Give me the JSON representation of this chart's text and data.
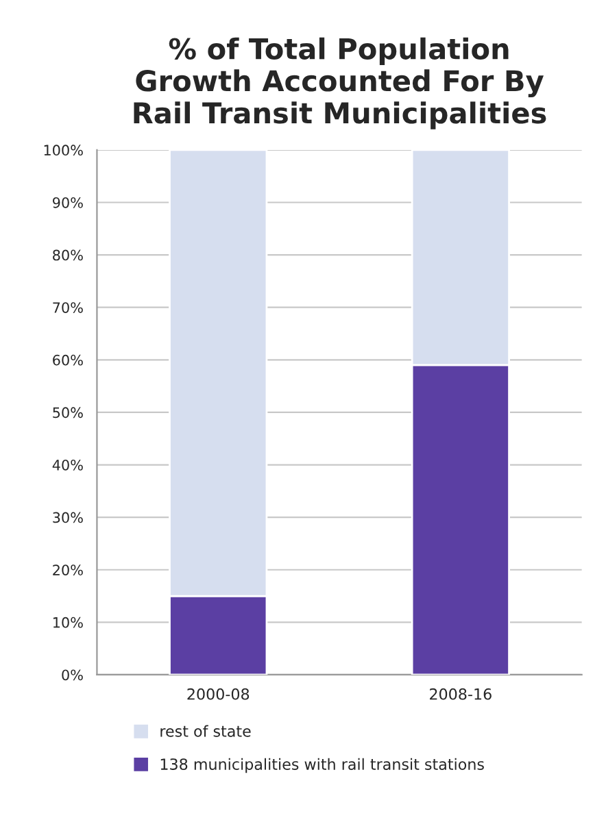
{
  "chart_data": {
    "type": "bar",
    "title": "% of Total Population\nGrowth Accounted For By\nRail Transit Municipalities",
    "categories": [
      "2000-08",
      "2008-16"
    ],
    "stacked": true,
    "series": [
      {
        "name": "138 municipalities with rail transit stations",
        "color": "#5b3fa3",
        "values": [
          15,
          59
        ]
      },
      {
        "name": "rest of state",
        "color": "#d6deef",
        "values": [
          85,
          41
        ]
      }
    ],
    "ylim": [
      0,
      100
    ],
    "yticks": [
      {
        "value": 0,
        "label": "0%"
      },
      {
        "value": 10,
        "label": "10%"
      },
      {
        "value": 20,
        "label": "20%"
      },
      {
        "value": 30,
        "label": "30%"
      },
      {
        "value": 40,
        "label": "40%"
      },
      {
        "value": 50,
        "label": "50%"
      },
      {
        "value": 60,
        "label": "60%"
      },
      {
        "value": 70,
        "label": "70%"
      },
      {
        "value": 80,
        "label": "80%"
      },
      {
        "value": 90,
        "label": "90%"
      },
      {
        "value": 100,
        "label": "100%"
      }
    ],
    "grid": "y",
    "legend": "bottom"
  }
}
